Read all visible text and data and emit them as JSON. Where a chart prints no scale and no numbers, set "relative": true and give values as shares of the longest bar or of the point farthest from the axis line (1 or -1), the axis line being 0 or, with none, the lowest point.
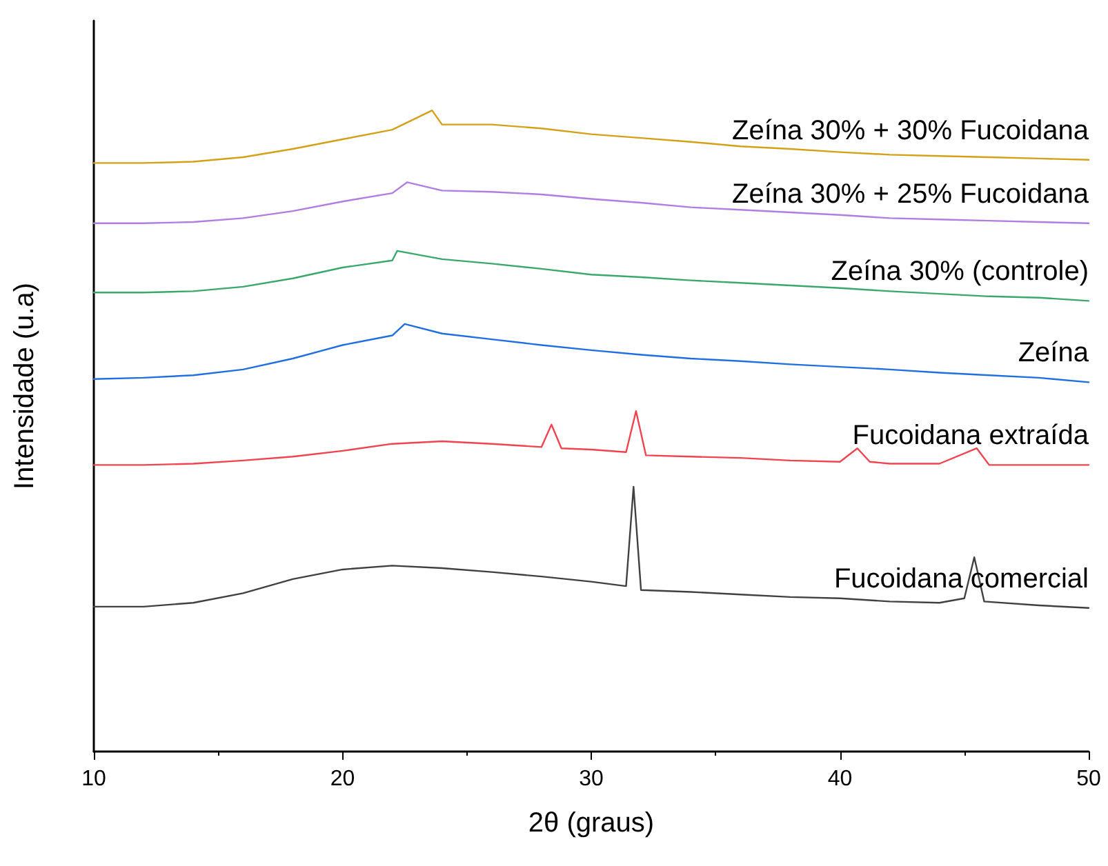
{
  "chart_data": {
    "type": "line",
    "relative": true,
    "xlabel": "2θ (graus)",
    "ylabel": "Intensidade (u.a)",
    "xlim": [
      10,
      50
    ],
    "xticks": [
      10,
      20,
      30,
      40,
      50
    ],
    "grid": false,
    "legend": false,
    "marker": "none",
    "line_style": "solid",
    "series": [
      {
        "name": "Fucoidana comercial",
        "color": "#404040",
        "x": [
          10,
          12,
          14,
          16,
          18,
          20,
          22,
          24,
          26,
          28,
          30,
          31.4,
          31.7,
          32,
          34,
          36,
          38,
          40,
          42,
          44,
          45,
          45.4,
          45.8,
          48,
          50
        ],
        "values": [
          0.226,
          0.226,
          0.232,
          0.247,
          0.269,
          0.284,
          0.29,
          0.286,
          0.28,
          0.273,
          0.265,
          0.258,
          0.413,
          0.252,
          0.249,
          0.245,
          0.241,
          0.239,
          0.234,
          0.232,
          0.239,
          0.303,
          0.234,
          0.228,
          0.224
        ]
      },
      {
        "name": "Fucoidana extraída",
        "color": "#f0434d",
        "x": [
          10,
          12,
          14,
          16,
          18,
          20,
          22,
          24,
          26,
          28,
          28.4,
          28.8,
          30,
          31.4,
          31.8,
          32.2,
          34,
          36,
          38,
          40,
          40.7,
          41.2,
          42,
          44,
          45.5,
          46,
          48,
          50
        ],
        "values": [
          0.447,
          0.447,
          0.449,
          0.454,
          0.46,
          0.469,
          0.48,
          0.484,
          0.48,
          0.475,
          0.51,
          0.473,
          0.471,
          0.467,
          0.531,
          0.462,
          0.46,
          0.458,
          0.454,
          0.452,
          0.473,
          0.452,
          0.449,
          0.449,
          0.473,
          0.447,
          0.447,
          0.447
        ]
      },
      {
        "name": "Zeína",
        "color": "#1f6fe0",
        "x": [
          10,
          12,
          14,
          16,
          18,
          20,
          22,
          22.5,
          24,
          26,
          28,
          30,
          32,
          34,
          36,
          38,
          40,
          42,
          44,
          46,
          48,
          50
        ],
        "values": [
          0.581,
          0.583,
          0.587,
          0.596,
          0.613,
          0.634,
          0.649,
          0.667,
          0.652,
          0.643,
          0.634,
          0.626,
          0.619,
          0.613,
          0.609,
          0.604,
          0.6,
          0.596,
          0.591,
          0.587,
          0.583,
          0.576
        ]
      },
      {
        "name": "Zeína 30% (controle)",
        "color": "#3aa76b",
        "x": [
          10,
          12,
          14,
          16,
          18,
          20,
          22,
          22.2,
          24,
          26,
          28,
          30,
          32,
          34,
          36,
          38,
          40,
          42,
          44,
          46,
          48,
          50
        ],
        "values": [
          0.716,
          0.716,
          0.718,
          0.725,
          0.738,
          0.755,
          0.766,
          0.781,
          0.768,
          0.761,
          0.753,
          0.744,
          0.74,
          0.735,
          0.731,
          0.727,
          0.723,
          0.718,
          0.714,
          0.71,
          0.708,
          0.703
        ]
      },
      {
        "name": "Zeína 30% + 25% Fucoidana",
        "color": "#b07de0",
        "x": [
          10,
          12,
          14,
          16,
          18,
          20,
          22,
          22.6,
          24,
          26,
          28,
          30,
          32,
          34,
          36,
          38,
          40,
          42,
          44,
          46,
          48,
          50
        ],
        "values": [
          0.824,
          0.824,
          0.826,
          0.832,
          0.843,
          0.858,
          0.871,
          0.888,
          0.875,
          0.873,
          0.869,
          0.862,
          0.856,
          0.849,
          0.845,
          0.841,
          0.837,
          0.832,
          0.83,
          0.828,
          0.826,
          0.824
        ]
      },
      {
        "name": "Zeína 30% + 30% Fucoidana",
        "color": "#d4a017",
        "x": [
          10,
          12,
          14,
          16,
          18,
          20,
          22,
          23.6,
          24,
          26,
          28,
          30,
          32,
          34,
          36,
          38,
          40,
          42,
          44,
          46,
          48,
          50
        ],
        "values": [
          0.918,
          0.918,
          0.92,
          0.927,
          0.94,
          0.955,
          0.97,
          1,
          0.978,
          0.978,
          0.972,
          0.963,
          0.957,
          0.951,
          0.944,
          0.94,
          0.935,
          0.931,
          0.929,
          0.927,
          0.925,
          0.923
        ]
      }
    ]
  }
}
